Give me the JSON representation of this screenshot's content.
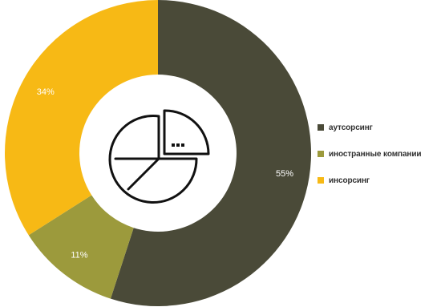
{
  "chart_data": {
    "type": "pie",
    "subtype": "donut",
    "categories": [
      "аутсорсинг",
      "иностранные компании",
      "инсорсинг"
    ],
    "values": [
      55,
      11,
      34
    ],
    "data_labels": [
      "55%",
      "11%",
      "34%"
    ],
    "colors": [
      "#4a4a38",
      "#9c9a3c",
      "#f7b915"
    ],
    "legend_position": "right",
    "center_icon": "pie-chart-icon"
  }
}
